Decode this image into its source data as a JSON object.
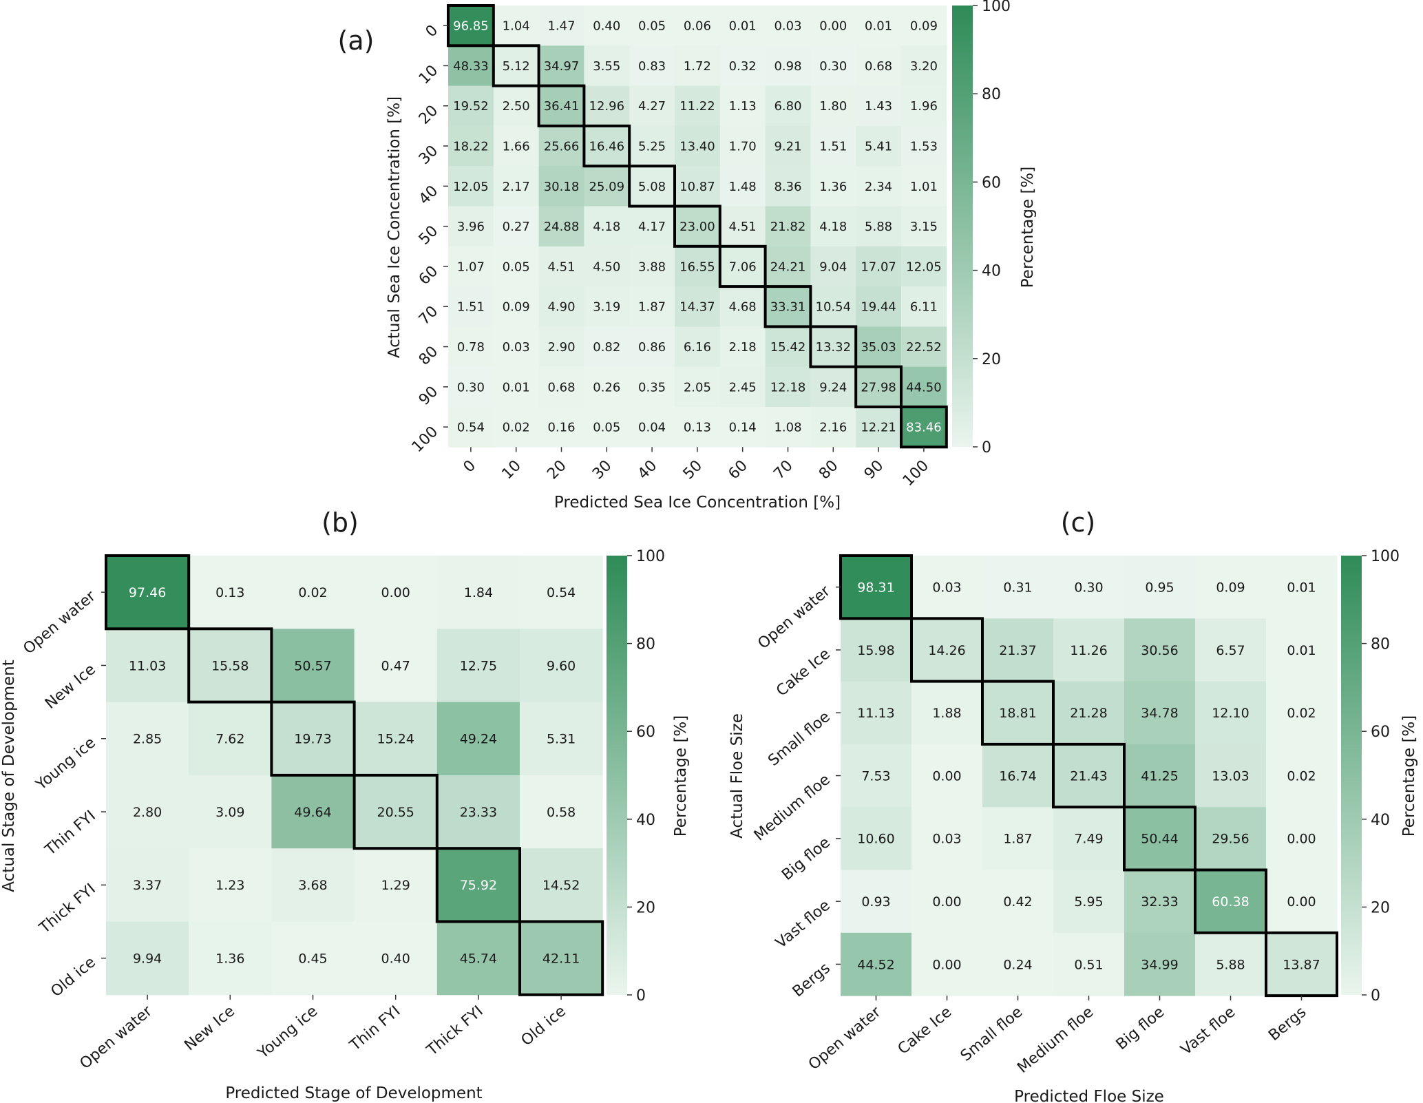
{
  "figure": {
    "panels": [
      {
        "label": "(a)",
        "xlabel": "Predicted Sea Ice Concentration [%]",
        "ylabel": "Actual Sea Ice Concentration [%]",
        "colorbar_label": "Percentage [%]"
      },
      {
        "label": "(b)",
        "xlabel": "Predicted Stage of Development",
        "ylabel": "Actual Stage of Development",
        "colorbar_label": "Percentage [%]"
      },
      {
        "label": "(c)",
        "xlabel": "Predicted Floe Size",
        "ylabel": "Actual Floe Size",
        "colorbar_label": "Percentage [%]"
      }
    ]
  },
  "colors": {
    "low": "#eaf5ee",
    "high": "#2e8b57",
    "box": "#000000",
    "text_dark": "#1a1a1a",
    "text_light": "#ffffff"
  },
  "chart_data": [
    {
      "type": "heatmap",
      "xlabel": "Predicted Sea Ice Concentration [%]",
      "ylabel": "Actual Sea Ice Concentration [%]",
      "colorbar": {
        "label": "Percentage [%]",
        "range": [
          0,
          100
        ],
        "ticks": [
          "0",
          "20",
          "40",
          "60",
          "80",
          "100"
        ]
      },
      "x_categories": [
        "0",
        "10",
        "20",
        "30",
        "40",
        "50",
        "60",
        "70",
        "80",
        "90",
        "100"
      ],
      "y_categories": [
        "0",
        "10",
        "20",
        "30",
        "40",
        "50",
        "60",
        "70",
        "80",
        "90",
        "100"
      ],
      "values": [
        [
          96.85,
          1.04,
          1.47,
          0.4,
          0.05,
          0.06,
          0.01,
          0.03,
          0.0,
          0.01,
          0.09
        ],
        [
          48.33,
          5.12,
          34.97,
          3.55,
          0.83,
          1.72,
          0.32,
          0.98,
          0.3,
          0.68,
          3.2
        ],
        [
          19.52,
          2.5,
          36.41,
          12.96,
          4.27,
          11.22,
          1.13,
          6.8,
          1.8,
          1.43,
          1.96
        ],
        [
          18.22,
          1.66,
          25.66,
          16.46,
          5.25,
          13.4,
          1.7,
          9.21,
          1.51,
          5.41,
          1.53
        ],
        [
          12.05,
          2.17,
          30.18,
          25.09,
          5.08,
          10.87,
          1.48,
          8.36,
          1.36,
          2.34,
          1.01
        ],
        [
          3.96,
          0.27,
          24.88,
          4.18,
          4.17,
          23.0,
          4.51,
          21.82,
          4.18,
          5.88,
          3.15
        ],
        [
          1.07,
          0.05,
          4.51,
          4.5,
          3.88,
          16.55,
          7.06,
          24.21,
          9.04,
          17.07,
          12.05
        ],
        [
          1.51,
          0.09,
          4.9,
          3.19,
          1.87,
          14.37,
          4.68,
          33.31,
          10.54,
          19.44,
          6.11
        ],
        [
          0.78,
          0.03,
          2.9,
          0.82,
          0.86,
          6.16,
          2.18,
          15.42,
          13.32,
          35.03,
          22.52
        ],
        [
          0.3,
          0.01,
          0.68,
          0.26,
          0.35,
          2.05,
          2.45,
          12.18,
          9.24,
          27.98,
          44.5
        ],
        [
          0.54,
          0.02,
          0.16,
          0.05,
          0.04,
          0.13,
          0.14,
          1.08,
          2.16,
          12.21,
          83.46
        ]
      ]
    },
    {
      "type": "heatmap",
      "xlabel": "Predicted Stage of Development",
      "ylabel": "Actual Stage of Development",
      "colorbar": {
        "label": "Percentage [%]",
        "range": [
          0,
          100
        ],
        "ticks": [
          "0",
          "20",
          "40",
          "60",
          "80",
          "100"
        ]
      },
      "x_categories": [
        "Open water",
        "New Ice",
        "Young ice",
        "Thin FYI",
        "Thick FYI",
        "Old ice"
      ],
      "y_categories": [
        "Open water",
        "New Ice",
        "Young ice",
        "Thin FYI",
        "Thick FYI",
        "Old ice"
      ],
      "values": [
        [
          97.46,
          0.13,
          0.02,
          0.0,
          1.84,
          0.54
        ],
        [
          11.03,
          15.58,
          50.57,
          0.47,
          12.75,
          9.6
        ],
        [
          2.85,
          7.62,
          19.73,
          15.24,
          49.24,
          5.31
        ],
        [
          2.8,
          3.09,
          49.64,
          20.55,
          23.33,
          0.58
        ],
        [
          3.37,
          1.23,
          3.68,
          1.29,
          75.92,
          14.52
        ],
        [
          9.94,
          1.36,
          0.45,
          0.4,
          45.74,
          42.11
        ]
      ]
    },
    {
      "type": "heatmap",
      "xlabel": "Predicted Floe Size",
      "ylabel": "Actual Floe Size",
      "colorbar": {
        "label": "Percentage [%]",
        "range": [
          0,
          100
        ],
        "ticks": [
          "0",
          "20",
          "40",
          "60",
          "80",
          "100"
        ]
      },
      "x_categories": [
        "Open water",
        "Cake Ice",
        "Small floe",
        "Medium floe",
        "Big floe",
        "Vast floe",
        "Bergs"
      ],
      "y_categories": [
        "Open water",
        "Cake Ice",
        "Small floe",
        "Medium floe",
        "Big floe",
        "Vast floe",
        "Bergs"
      ],
      "values": [
        [
          98.31,
          0.03,
          0.31,
          0.3,
          0.95,
          0.09,
          0.01
        ],
        [
          15.98,
          14.26,
          21.37,
          11.26,
          30.56,
          6.57,
          0.01
        ],
        [
          11.13,
          1.88,
          18.81,
          21.28,
          34.78,
          12.1,
          0.02
        ],
        [
          7.53,
          0.0,
          16.74,
          21.43,
          41.25,
          13.03,
          0.02
        ],
        [
          10.6,
          0.03,
          1.87,
          7.49,
          50.44,
          29.56,
          0.0
        ],
        [
          0.93,
          0.0,
          0.42,
          5.95,
          32.33,
          60.38,
          0.0
        ],
        [
          44.52,
          0.0,
          0.24,
          0.51,
          34.99,
          5.88,
          13.87
        ]
      ]
    }
  ]
}
